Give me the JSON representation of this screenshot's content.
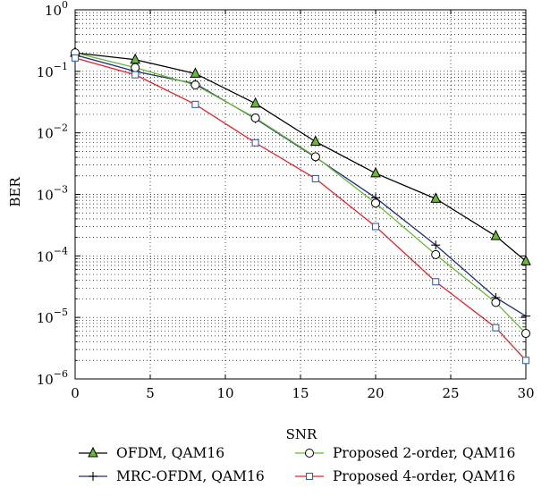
{
  "chart_data": {
    "type": "line",
    "title": "",
    "xlabel": "SNR",
    "ylabel": "BER",
    "xlim": [
      0,
      30
    ],
    "ylim": [
      1e-06,
      1
    ],
    "yscale": "log",
    "grid": true,
    "legend_position": "bottom",
    "x_ticks": [
      "0",
      "5",
      "10",
      "15",
      "20",
      "25",
      "30"
    ],
    "y_ticks": [
      {
        "base": "10",
        "exp": "0"
      },
      {
        "base": "10",
        "exp": "−1"
      },
      {
        "base": "10",
        "exp": "−2"
      },
      {
        "base": "10",
        "exp": "−3"
      },
      {
        "base": "10",
        "exp": "−4"
      },
      {
        "base": "10",
        "exp": "−5"
      },
      {
        "base": "10",
        "exp": "−6"
      }
    ],
    "x": [
      0,
      4,
      8,
      12,
      16,
      20,
      24,
      28,
      30
    ],
    "series": [
      {
        "name": "OFDM, QAM16",
        "color": "#000000",
        "marker": "triangle",
        "values": [
          0.2,
          0.155,
          0.092,
          0.03,
          0.0072,
          0.0022,
          0.00085,
          0.00021,
          8.2e-05
        ]
      },
      {
        "name": "MRC-OFDM, QAM16",
        "color": "#1f2d7a",
        "marker": "plus",
        "values": [
          0.185,
          0.1,
          0.063,
          0.017,
          0.004,
          0.00088,
          0.00015,
          2.1e-05,
          1.05e-05
        ]
      },
      {
        "name": "Proposed 2-order, QAM16",
        "color": "#66bb33",
        "marker": "circle",
        "values": [
          0.2,
          0.115,
          0.06,
          0.0175,
          0.0041,
          0.00072,
          0.000105,
          1.75e-05,
          5.5e-06
        ]
      },
      {
        "name": "Proposed 4-order, QAM16",
        "color": "#e8202a",
        "marker": "square",
        "values": [
          0.165,
          0.088,
          0.029,
          0.0069,
          0.0018,
          0.0003,
          3.8e-05,
          6.8e-06,
          2e-06
        ]
      }
    ]
  }
}
